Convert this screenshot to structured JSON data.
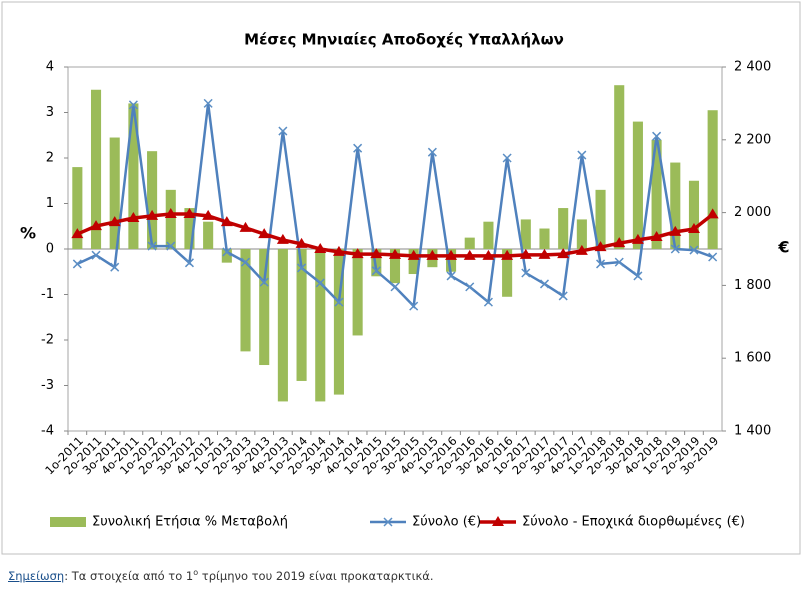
{
  "chart_data": {
    "type": "bar_line",
    "title": "Μέσες Μηνιαίες Αποδοχές Υπαλλήλων",
    "y_label": "%",
    "y2_label": "€",
    "categories": [
      "1ο-2011",
      "2ο-2011",
      "3ο-2011",
      "4ο-2011",
      "1ο-2012",
      "2ο-2012",
      "3ο-2012",
      "4ο-2012",
      "1ο-2013",
      "2ο-2013",
      "3ο-2013",
      "4ο-2013",
      "1ο-2014",
      "2ο-2014",
      "3ο-2014",
      "4ο-2014",
      "1ο-2015",
      "2ο-2015",
      "3ο-2015",
      "4ο-2015",
      "1ο-2016",
      "2ο-2016",
      "3ο-2016",
      "4ο-2016",
      "1ο-2017",
      "2ο-2017",
      "3ο-2017",
      "4ο-2017",
      "1ο-2018",
      "2ο-2018",
      "3ο-2018",
      "4ο-2018",
      "1ο-2019",
      "2ο-2019",
      "3ο-2019"
    ],
    "series": [
      {
        "name": "Συνολική Ετήσια % Μεταβολή",
        "type": "bar",
        "color": "#9bbb59",
        "values": [
          1.8,
          3.5,
          2.45,
          3.2,
          2.15,
          1.3,
          0.9,
          0.6,
          -0.3,
          -2.25,
          -2.55,
          -3.35,
          -2.9,
          -3.35,
          -3.2,
          -1.9,
          -0.6,
          -0.75,
          -0.55,
          -0.4,
          -0.5,
          0.25,
          0.6,
          -1.05,
          0.65,
          0.45,
          0.9,
          0.65,
          1.3,
          3.6,
          2.8,
          2.4,
          1.9,
          1.5,
          3.05
        ]
      },
      {
        "name": "Σύνολο (€)",
        "type": "line",
        "marker": "x",
        "axis": "y2",
        "color": "#4f81bd",
        "values": [
          1859,
          1883,
          1850,
          2296,
          1908,
          1908,
          1862,
          2300,
          1892,
          1864,
          1809,
          2224,
          1848,
          1807,
          1754,
          2177,
          1840,
          1796,
          1743,
          2166,
          1826,
          1796,
          1754,
          2150,
          1834,
          1804,
          1771,
          2158,
          1859,
          1864,
          1826,
          2210,
          1900,
          1897,
          1878
        ]
      },
      {
        "name": "Σύνολο - Εποχικά διορθωμένες (€)",
        "type": "line",
        "marker": "triangle",
        "axis": "y2",
        "color": "#c00000",
        "values": [
          1941,
          1963,
          1974,
          1985,
          1991,
          1996,
          1996,
          1991,
          1974,
          1958,
          1941,
          1925,
          1914,
          1900,
          1892,
          1886,
          1886,
          1884,
          1881,
          1881,
          1881,
          1881,
          1881,
          1881,
          1884,
          1884,
          1886,
          1895,
          1905,
          1916,
          1925,
          1933,
          1947,
          1955,
          1995
        ]
      }
    ],
    "ylim": [
      -4,
      4
    ],
    "yticks": [
      -4,
      -3,
      -2,
      -1,
      0,
      1,
      2,
      3,
      4
    ],
    "y2lim": [
      1400,
      2400
    ],
    "y2ticks": [
      {
        "value": 1400,
        "label": "1 400"
      },
      {
        "value": 1600,
        "label": "1 600"
      },
      {
        "value": 1800,
        "label": "1 800"
      },
      {
        "value": 2000,
        "label": "2 000"
      },
      {
        "value": 2200,
        "label": "2 200"
      },
      {
        "value": 2400,
        "label": "2 400"
      }
    ],
    "grid": false,
    "legend": "bottom"
  },
  "note": {
    "link": "Σημείωση",
    "text": ": Τα στοιχεία από το 1",
    "sup": "ο",
    "rest": " τρίμηνο του 2019 είναι προκαταρκτικά."
  }
}
